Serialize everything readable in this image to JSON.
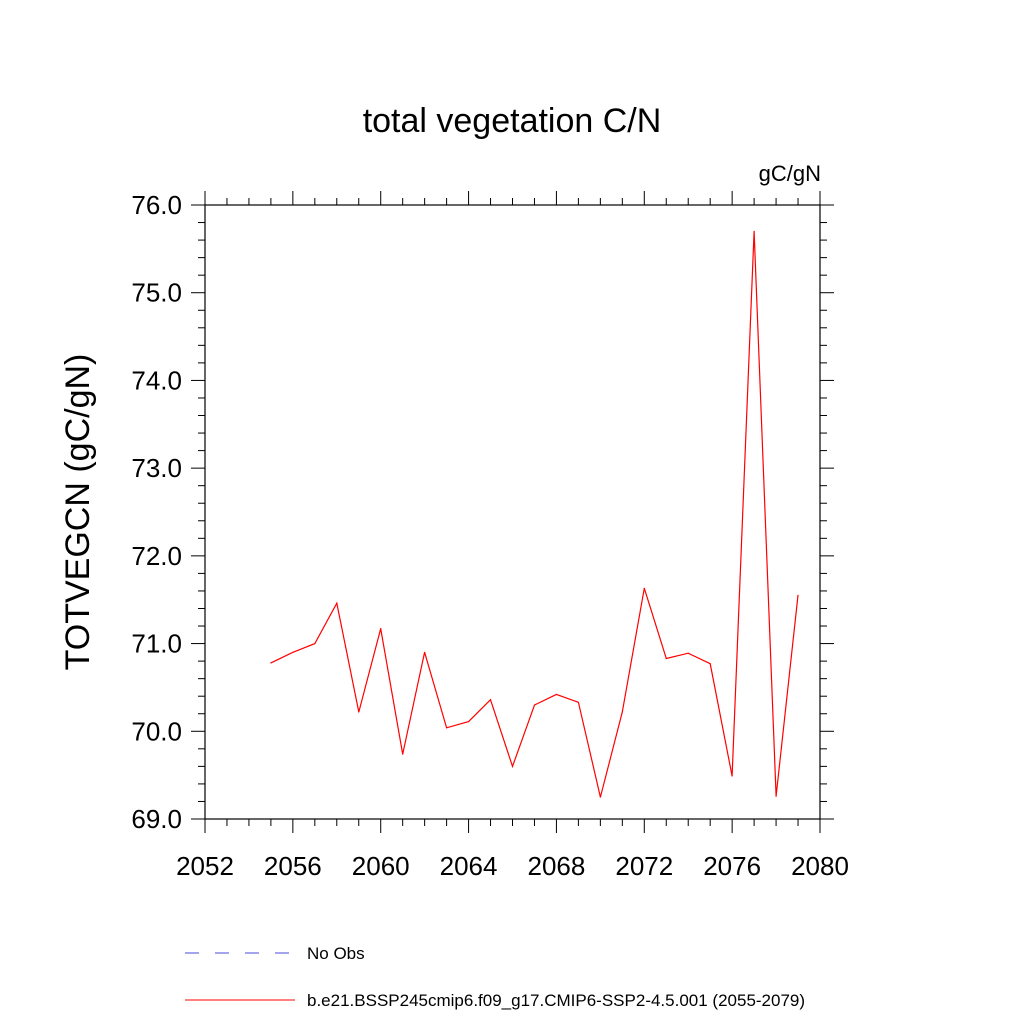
{
  "chart_data": {
    "type": "line",
    "title": "total vegetation C/N",
    "units_label": "gC/gN",
    "xlabel": "",
    "ylabel": "TOTVEGCN  (gC/gN)",
    "xlim": [
      2052,
      2080
    ],
    "ylim": [
      69.0,
      76.0
    ],
    "x_ticks": [
      2052,
      2056,
      2060,
      2064,
      2068,
      2072,
      2076,
      2080
    ],
    "x_tick_labels": [
      "2052",
      "2056",
      "2060",
      "2064",
      "2068",
      "2072",
      "2076",
      "2080"
    ],
    "y_ticks": [
      69.0,
      70.0,
      71.0,
      72.0,
      73.0,
      74.0,
      75.0,
      76.0
    ],
    "y_tick_labels": [
      "69.0",
      "70.0",
      "71.0",
      "72.0",
      "73.0",
      "74.0",
      "75.0",
      "76.0"
    ],
    "grid": false,
    "legend_position": "bottom",
    "series": [
      {
        "name": "b.e21.BSSP245cmip6.f09_g17.CMIP6-SSP2-4.5.001 (2055-2079)",
        "color": "#ff0000",
        "style": "solid",
        "x": [
          2055,
          2056,
          2057,
          2058,
          2059,
          2060,
          2061,
          2062,
          2063,
          2064,
          2065,
          2066,
          2067,
          2068,
          2069,
          2070,
          2071,
          2072,
          2073,
          2074,
          2075,
          2076,
          2077,
          2078,
          2079
        ],
        "y": [
          70.78,
          70.9,
          71.0,
          71.46,
          70.22,
          71.17,
          69.74,
          70.9,
          70.04,
          70.11,
          70.36,
          69.6,
          70.3,
          70.42,
          70.33,
          69.25,
          70.22,
          71.63,
          70.83,
          70.89,
          70.77,
          69.49,
          75.7,
          69.26,
          71.55
        ]
      }
    ],
    "legend": [
      {
        "label": "No Obs",
        "color": "#4b4bd8",
        "style": "dashed"
      },
      {
        "label": "b.e21.BSSP245cmip6.f09_g17.CMIP6-SSP2-4.5.001 (2055-2079)",
        "color": "#ff0000",
        "style": "solid"
      }
    ]
  }
}
